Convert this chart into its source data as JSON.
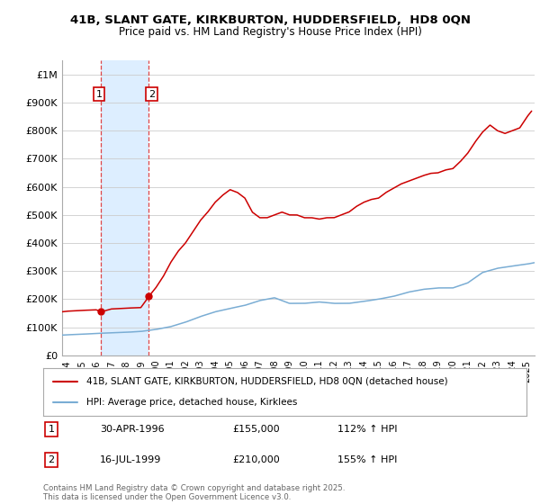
{
  "title_line1": "41B, SLANT GATE, KIRKBURTON, HUDDERSFIELD,  HD8 0QN",
  "title_line2": "Price paid vs. HM Land Registry's House Price Index (HPI)",
  "ylim": [
    0,
    1050000
  ],
  "xlim_start": 1993.7,
  "xlim_end": 2025.5,
  "sale1_year": 1996.33,
  "sale1_price": 155000,
  "sale1_label": "1",
  "sale2_year": 1999.54,
  "sale2_price": 210000,
  "sale2_label": "2",
  "red_line_color": "#cc0000",
  "blue_line_color": "#7aadd4",
  "marker_color": "#cc0000",
  "shade_color": "#ddeeff",
  "grid_color": "#cccccc",
  "legend_red_label": "41B, SLANT GATE, KIRKBURTON, HUDDERSFIELD, HD8 0QN (detached house)",
  "legend_blue_label": "HPI: Average price, detached house, Kirklees",
  "table_rows": [
    {
      "num": "1",
      "date": "30-APR-1996",
      "price": "£155,000",
      "hpi": "112% ↑ HPI"
    },
    {
      "num": "2",
      "date": "16-JUL-1999",
      "price": "£210,000",
      "hpi": "155% ↑ HPI"
    }
  ],
  "footer": "Contains HM Land Registry data © Crown copyright and database right 2025.\nThis data is licensed under the Open Government Licence v3.0.",
  "yticks": [
    0,
    100000,
    200000,
    300000,
    400000,
    500000,
    600000,
    700000,
    800000,
    900000,
    1000000
  ],
  "ytick_labels": [
    "£0",
    "£100K",
    "£200K",
    "£300K",
    "£400K",
    "£500K",
    "£600K",
    "£700K",
    "£800K",
    "£900K",
    "£1M"
  ],
  "hpi_years": [
    1993.7,
    1994,
    1995,
    1996,
    1997,
    1998,
    1999,
    2000,
    2001,
    2002,
    2003,
    2004,
    2005,
    2006,
    2007,
    2008,
    2009,
    2010,
    2011,
    2012,
    2013,
    2014,
    2015,
    2016,
    2017,
    2018,
    2019,
    2020,
    2021,
    2022,
    2023,
    2024,
    2025,
    2025.5
  ],
  "hpi_vals": [
    72000,
    73000,
    75000,
    78000,
    80000,
    82000,
    85000,
    92000,
    102000,
    118000,
    138000,
    155000,
    167000,
    178000,
    195000,
    205000,
    185000,
    185000,
    190000,
    185000,
    185000,
    192000,
    200000,
    210000,
    225000,
    235000,
    240000,
    240000,
    258000,
    295000,
    310000,
    318000,
    325000,
    330000
  ],
  "red_years": [
    1993.7,
    1994,
    1995,
    1996,
    1996.33,
    1997,
    1998,
    1999,
    1999.54,
    2000,
    2000.5,
    2001,
    2001.5,
    2002,
    2002.5,
    2003,
    2003.5,
    2004,
    2004.5,
    2005,
    2005.5,
    2006,
    2006.5,
    2007,
    2007.5,
    2008,
    2008.5,
    2009,
    2009.5,
    2010,
    2010.5,
    2011,
    2011.5,
    2012,
    2012.5,
    2013,
    2013.5,
    2014,
    2014.5,
    2015,
    2015.5,
    2016,
    2016.5,
    2017,
    2017.5,
    2018,
    2018.5,
    2019,
    2019.5,
    2020,
    2020.5,
    2021,
    2021.5,
    2022,
    2022.5,
    2023,
    2023.5,
    2024,
    2024.5,
    2025,
    2025.3
  ],
  "red_vals": [
    155000,
    157000,
    160000,
    162000,
    155000,
    165000,
    168000,
    170000,
    210000,
    240000,
    280000,
    330000,
    370000,
    400000,
    440000,
    480000,
    510000,
    545000,
    570000,
    590000,
    580000,
    560000,
    510000,
    490000,
    490000,
    500000,
    510000,
    500000,
    500000,
    490000,
    490000,
    485000,
    490000,
    490000,
    500000,
    510000,
    530000,
    545000,
    555000,
    560000,
    580000,
    595000,
    610000,
    620000,
    630000,
    640000,
    648000,
    650000,
    660000,
    665000,
    690000,
    720000,
    760000,
    795000,
    820000,
    800000,
    790000,
    800000,
    810000,
    850000,
    870000
  ]
}
